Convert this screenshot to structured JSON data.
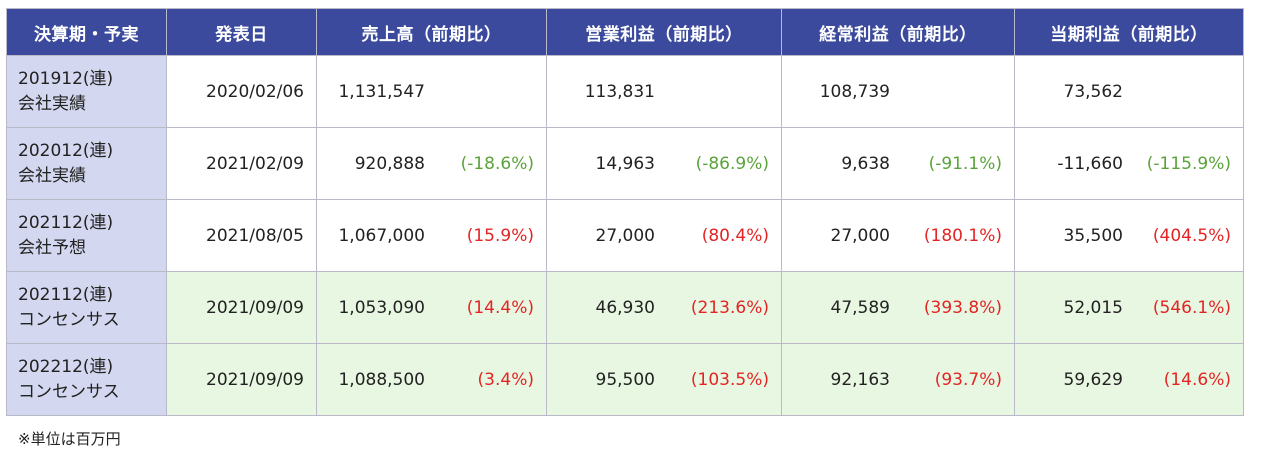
{
  "headers": [
    "決算期・予実",
    "発表日",
    "売上高（前期比）",
    "営業利益（前期比）",
    "経常利益（前期比）",
    "当期利益（前期比）"
  ],
  "rows": [
    {
      "period_line1": "201912(連)",
      "period_line2": "会社実績",
      "date": "2020/02/06",
      "sales": "1,131,547",
      "sales_pct": "",
      "op": "113,831",
      "op_pct": "",
      "ord": "108,739",
      "ord_pct": "",
      "net": "73,562",
      "net_pct": ""
    },
    {
      "period_line1": "202012(連)",
      "period_line2": "会社実績",
      "date": "2021/02/09",
      "sales": "920,888",
      "sales_pct": "(-18.6%)",
      "op": "14,963",
      "op_pct": "(-86.9%)",
      "ord": "9,638",
      "ord_pct": "(-91.1%)",
      "net": "-11,660",
      "net_pct": "(-115.9%)"
    },
    {
      "period_line1": "202112(連)",
      "period_line2": "会社予想",
      "date": "2021/08/05",
      "sales": "1,067,000",
      "sales_pct": "(15.9%)",
      "op": "27,000",
      "op_pct": "(80.4%)",
      "ord": "27,000",
      "ord_pct": "(180.1%)",
      "net": "35,500",
      "net_pct": "(404.5%)"
    },
    {
      "period_line1": "202112(連)",
      "period_line2": "コンセンサス",
      "date": "2021/09/09",
      "sales": "1,053,090",
      "sales_pct": "(14.4%)",
      "op": "46,930",
      "op_pct": "(213.6%)",
      "ord": "47,589",
      "ord_pct": "(393.8%)",
      "net": "52,015",
      "net_pct": "(546.1%)"
    },
    {
      "period_line1": "202212(連)",
      "period_line2": "コンセンサス",
      "date": "2021/09/09",
      "sales": "1,088,500",
      "sales_pct": "(3.4%)",
      "op": "95,500",
      "op_pct": "(103.5%)",
      "ord": "92,163",
      "ord_pct": "(93.7%)",
      "net": "59,629",
      "net_pct": "(14.6%)"
    }
  ],
  "note": "※単位は百万円",
  "colors": {
    "header_bg": "#3b4a9c",
    "period_bg": "#d3d7ef",
    "consensus_bg": "#e8f7e1",
    "negative_change": "#5aa33a",
    "positive_change": "#e32424"
  }
}
